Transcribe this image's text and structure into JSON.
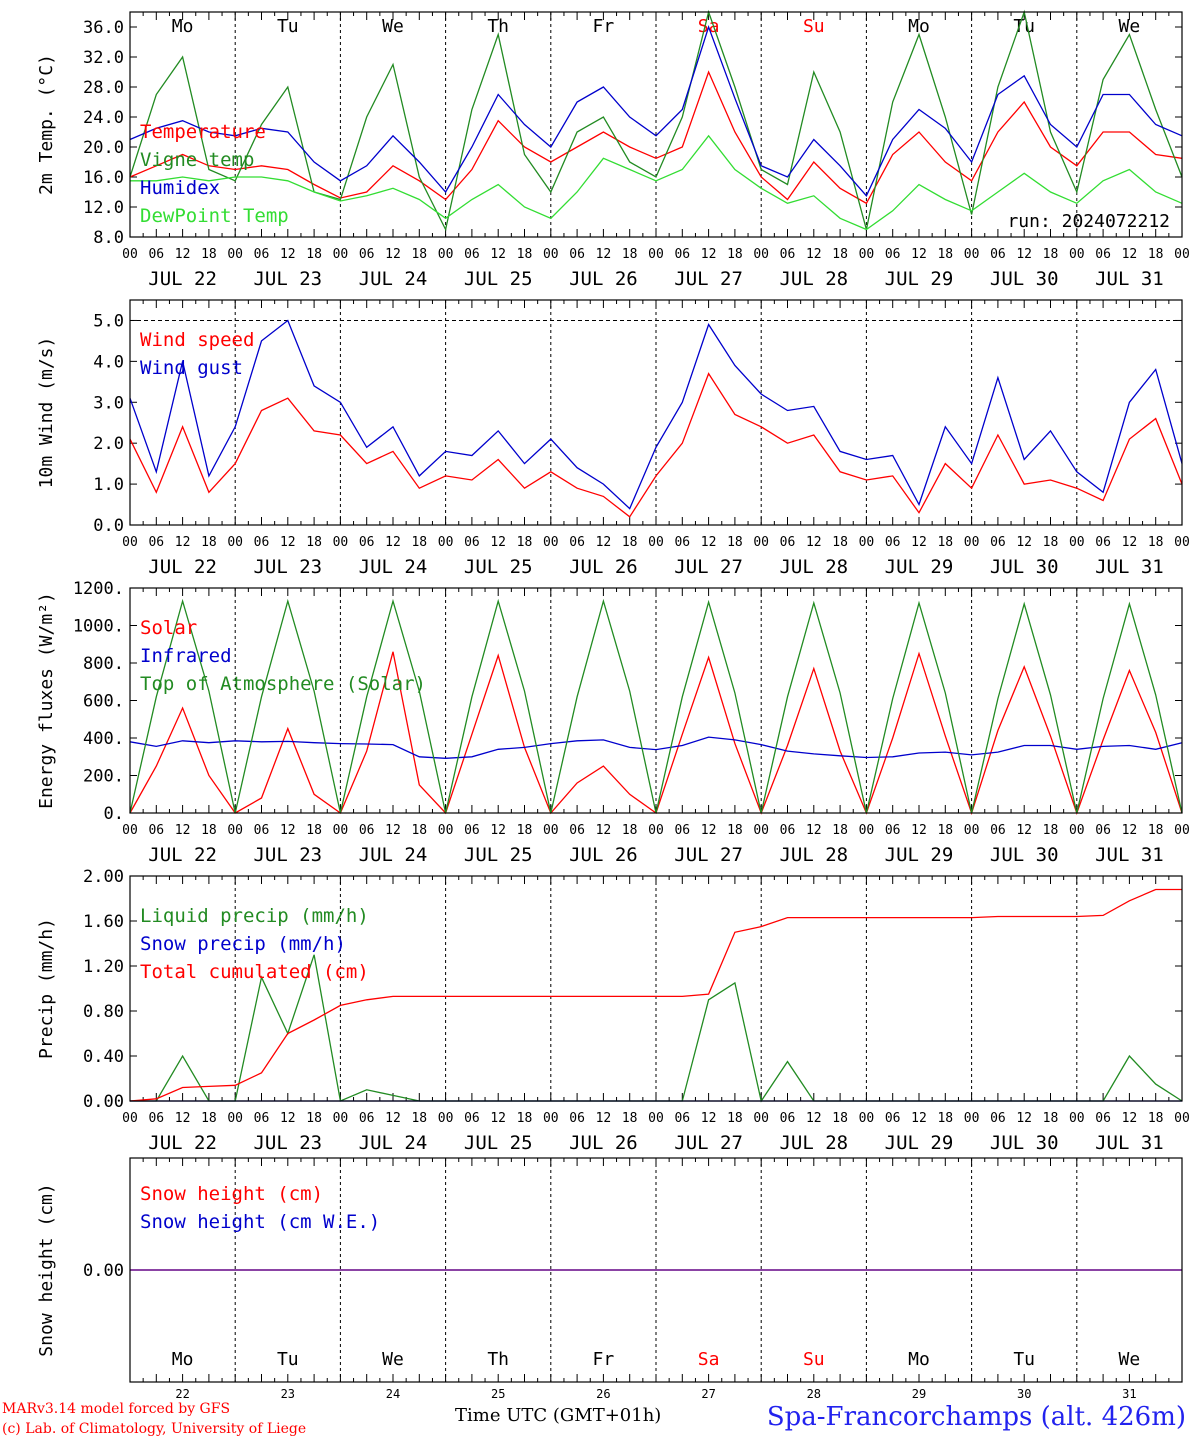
{
  "days": [
    "JUL 22",
    "JUL 23",
    "JUL 24",
    "JUL 25",
    "JUL 26",
    "JUL 27",
    "JUL 28",
    "JUL 29",
    "JUL 30",
    "JUL 31"
  ],
  "weekdays": [
    {
      "label": "Mo",
      "color": "#000000"
    },
    {
      "label": "Tu",
      "color": "#000000"
    },
    {
      "label": "We",
      "color": "#000000"
    },
    {
      "label": "Th",
      "color": "#000000"
    },
    {
      "label": "Fr",
      "color": "#000000"
    },
    {
      "label": "Sa",
      "color": "#ff0000"
    },
    {
      "label": "Su",
      "color": "#ff0000"
    },
    {
      "label": "Mo",
      "color": "#000000"
    },
    {
      "label": "Tu",
      "color": "#000000"
    },
    {
      "label": "We",
      "color": "#000000"
    }
  ],
  "hour_ticks": [
    "00",
    "06",
    "12",
    "18"
  ],
  "end_tick": "00",
  "day_numbers": [
    "22",
    "23",
    "24",
    "25",
    "26",
    "27",
    "28",
    "29",
    "30",
    "31"
  ],
  "footer": {
    "model": "MARv3.14 model forced by GFS",
    "credit": "(c) Lab. of Climatology, University of Liege",
    "xlabel": "Time UTC (GMT+01h)",
    "location": "Spa-Francorchamps (alt. 426m)"
  },
  "chart_data": [
    {
      "type": "line",
      "ylabel": "2m Temp. (°C)",
      "ylim": [
        8,
        38
      ],
      "yticks": [
        8,
        12,
        16,
        20,
        24,
        28,
        32,
        36
      ],
      "ytick_labels": [
        "8.0",
        "12.0",
        "16.0",
        "20.0",
        "24.0",
        "28.0",
        "32.0",
        "36.0"
      ],
      "annotation": "run: 2024072212",
      "legend_position": "left",
      "x_hours": [
        0,
        6,
        12,
        18,
        24,
        30,
        36,
        42,
        48,
        54,
        60,
        66,
        72,
        78,
        84,
        90,
        96,
        102,
        108,
        114,
        120,
        126,
        132,
        138,
        144,
        150,
        156,
        162,
        168,
        174,
        180,
        186,
        192,
        198,
        204,
        210,
        216,
        222,
        228,
        234,
        240
      ],
      "series": [
        {
          "name": "Temperature",
          "color": "#ff0000",
          "values": [
            16,
            17.5,
            19,
            17.5,
            17,
            17.5,
            17,
            15,
            13.2,
            14,
            17.5,
            15.5,
            13,
            17,
            23.5,
            20,
            18,
            20,
            22,
            20,
            18.5,
            20,
            30,
            22,
            16,
            13,
            18,
            14.5,
            12.5,
            19,
            22,
            18,
            15.5,
            22,
            26,
            20,
            17.5,
            22,
            22,
            19,
            18.5
          ]
        },
        {
          "name": "Vigne temp",
          "color": "#228b22",
          "values": [
            16,
            27,
            32,
            17,
            15.5,
            23,
            28,
            14,
            13,
            24,
            31,
            16,
            9,
            25,
            35,
            19,
            14,
            22,
            24,
            18,
            16,
            24,
            38,
            28,
            17,
            15,
            30,
            22,
            9,
            26,
            35,
            24,
            11,
            28,
            38,
            22,
            14,
            29,
            35,
            25,
            16
          ]
        },
        {
          "name": "Humidex",
          "color": "#0000cc",
          "values": [
            21,
            22.5,
            23.5,
            22,
            21.5,
            22.5,
            22,
            18,
            15.5,
            17.5,
            21.5,
            18,
            14,
            20,
            27,
            23,
            20,
            26,
            28,
            24,
            21.5,
            25,
            36,
            26.5,
            17.5,
            16,
            21,
            17.5,
            13.5,
            21,
            25,
            22.5,
            18,
            27,
            29.5,
            23,
            20,
            27,
            27,
            23,
            21.5
          ]
        },
        {
          "name": "DewPoint Temp",
          "color": "#33dd33",
          "values": [
            15.5,
            15.5,
            16,
            15.5,
            16,
            16,
            15.5,
            14,
            12.8,
            13.5,
            14.5,
            13,
            10.5,
            13,
            15,
            12,
            10.5,
            14,
            18.5,
            17,
            15.5,
            17,
            21.5,
            17,
            14.5,
            12.5,
            13.5,
            10.5,
            9,
            11.5,
            15,
            13,
            11.5,
            14,
            16.5,
            14,
            12.5,
            15.5,
            17,
            14,
            12.5
          ]
        }
      ]
    },
    {
      "type": "line",
      "ylabel": "10m Wind (m/s)",
      "ylim": [
        0,
        5.5
      ],
      "yticks": [
        0,
        1,
        2,
        3,
        4,
        5
      ],
      "ytick_labels": [
        "0.0",
        "1.0",
        "2.0",
        "3.0",
        "4.0",
        "5.0"
      ],
      "annotation": "",
      "legend_position": "left",
      "x_hours": [
        0,
        6,
        12,
        18,
        24,
        30,
        36,
        42,
        48,
        54,
        60,
        66,
        72,
        78,
        84,
        90,
        96,
        102,
        108,
        114,
        120,
        126,
        132,
        138,
        144,
        150,
        156,
        162,
        168,
        174,
        180,
        186,
        192,
        198,
        204,
        210,
        216,
        222,
        228,
        234,
        240
      ],
      "series": [
        {
          "name": "Wind speed",
          "color": "#ff0000",
          "values": [
            2.1,
            0.8,
            2.4,
            0.8,
            1.5,
            2.8,
            3.1,
            2.3,
            2.2,
            1.5,
            1.8,
            0.9,
            1.2,
            1.1,
            1.6,
            0.9,
            1.3,
            0.9,
            0.7,
            0.2,
            1.2,
            2.0,
            3.7,
            2.7,
            2.4,
            2.0,
            2.2,
            1.3,
            1.1,
            1.2,
            0.3,
            1.5,
            0.9,
            2.2,
            1.0,
            1.1,
            0.9,
            0.6,
            2.1,
            2.6,
            1.0
          ]
        },
        {
          "name": "Wind gust",
          "color": "#0000cc",
          "values": [
            3.1,
            1.3,
            4.0,
            1.2,
            2.4,
            4.5,
            5.0,
            3.4,
            3.0,
            1.9,
            2.4,
            1.2,
            1.8,
            1.7,
            2.3,
            1.5,
            2.1,
            1.4,
            1.0,
            0.4,
            1.9,
            3.0,
            4.9,
            3.9,
            3.2,
            2.8,
            2.9,
            1.8,
            1.6,
            1.7,
            0.5,
            2.4,
            1.5,
            3.6,
            1.6,
            2.3,
            1.3,
            0.8,
            3.0,
            3.8,
            1.5
          ]
        }
      ]
    },
    {
      "type": "line",
      "ylabel": "Energy fluxes (W/m²)",
      "ylim": [
        0,
        1200
      ],
      "yticks": [
        0,
        200,
        400,
        600,
        800,
        1000,
        1200
      ],
      "ytick_labels": [
        "0.",
        "200.",
        "400.",
        "600.",
        "800.",
        "1000.",
        "1200."
      ],
      "annotation": "",
      "legend_position": "left",
      "x_hours": [
        0,
        6,
        12,
        18,
        24,
        30,
        36,
        42,
        48,
        54,
        60,
        66,
        72,
        78,
        84,
        90,
        96,
        102,
        108,
        114,
        120,
        126,
        132,
        138,
        144,
        150,
        156,
        162,
        168,
        174,
        180,
        186,
        192,
        198,
        204,
        210,
        216,
        222,
        228,
        234,
        240
      ],
      "series": [
        {
          "name": "Solar",
          "color": "#ff0000",
          "values": [
            0,
            250,
            560,
            200,
            0,
            80,
            450,
            100,
            0,
            330,
            860,
            150,
            0,
            420,
            840,
            350,
            0,
            160,
            250,
            100,
            0,
            420,
            830,
            370,
            0,
            360,
            770,
            330,
            0,
            400,
            850,
            410,
            0,
            440,
            780,
            410,
            0,
            390,
            760,
            430,
            0
          ]
        },
        {
          "name": "Infrared",
          "color": "#0000cc",
          "values": [
            380,
            355,
            385,
            375,
            385,
            380,
            382,
            375,
            370,
            368,
            365,
            300,
            292,
            300,
            340,
            350,
            370,
            385,
            390,
            350,
            338,
            360,
            405,
            390,
            365,
            330,
            315,
            305,
            296,
            300,
            320,
            325,
            310,
            325,
            360,
            360,
            340,
            355,
            360,
            340,
            375
          ]
        },
        {
          "name": "Top of Atmosphere (Solar)",
          "color": "#228b22",
          "values": [
            0,
            620,
            1130,
            650,
            0,
            620,
            1130,
            650,
            0,
            620,
            1130,
            650,
            0,
            620,
            1130,
            650,
            0,
            620,
            1130,
            650,
            0,
            620,
            1125,
            640,
            0,
            620,
            1120,
            640,
            0,
            610,
            1120,
            640,
            0,
            610,
            1115,
            630,
            0,
            610,
            1115,
            630,
            0
          ]
        }
      ]
    },
    {
      "type": "line",
      "ylabel": "Precip (mm/h)",
      "ylim": [
        0,
        2
      ],
      "yticks": [
        0,
        0.4,
        0.8,
        1.2,
        1.6,
        2.0
      ],
      "ytick_labels": [
        "0.00",
        "0.40",
        "0.80",
        "1.20",
        "1.60",
        "2.00"
      ],
      "annotation": "",
      "legend_position": "left",
      "x_hours": [
        0,
        6,
        12,
        18,
        24,
        30,
        36,
        42,
        48,
        54,
        60,
        66,
        72,
        78,
        84,
        90,
        96,
        102,
        108,
        114,
        120,
        126,
        132,
        138,
        144,
        150,
        156,
        162,
        168,
        174,
        180,
        186,
        192,
        198,
        204,
        210,
        216,
        222,
        228,
        234,
        240
      ],
      "series": [
        {
          "name": "Liquid precip (mm/h)",
          "color": "#228b22",
          "values": [
            0,
            0,
            0.4,
            0,
            0,
            1.1,
            0.6,
            1.3,
            0,
            0.1,
            0.05,
            0,
            0,
            0,
            0,
            0,
            0,
            0,
            0,
            0,
            0,
            0,
            0.9,
            1.05,
            0,
            0.35,
            0,
            0,
            0,
            0,
            0,
            0,
            0,
            0,
            0,
            0,
            0,
            0,
            0.4,
            0.15,
            0
          ]
        },
        {
          "name": "Snow precip (mm/h)",
          "color": "#0000cc",
          "values": [
            0,
            0,
            0,
            0,
            0,
            0,
            0,
            0,
            0,
            0,
            0,
            0,
            0,
            0,
            0,
            0,
            0,
            0,
            0,
            0,
            0,
            0,
            0,
            0,
            0,
            0,
            0,
            0,
            0,
            0,
            0,
            0,
            0,
            0,
            0,
            0,
            0,
            0,
            0,
            0,
            0
          ]
        },
        {
          "name": "Total cumulated (cm)",
          "color": "#ff0000",
          "values": [
            0,
            0.02,
            0.12,
            0.13,
            0.14,
            0.25,
            0.6,
            0.72,
            0.85,
            0.9,
            0.93,
            0.93,
            0.93,
            0.93,
            0.93,
            0.93,
            0.93,
            0.93,
            0.93,
            0.93,
            0.93,
            0.93,
            0.95,
            1.5,
            1.55,
            1.63,
            1.63,
            1.63,
            1.63,
            1.63,
            1.63,
            1.63,
            1.63,
            1.64,
            1.64,
            1.64,
            1.64,
            1.65,
            1.78,
            1.88,
            1.88
          ]
        }
      ]
    },
    {
      "type": "line",
      "ylabel": "Snow height (cm)",
      "ylim": [
        -1,
        1
      ],
      "yticks": [
        0
      ],
      "ytick_labels": [
        "0.00"
      ],
      "annotation": "",
      "legend_position": "left",
      "x_hours": [
        0,
        240
      ],
      "series": [
        {
          "name": "Snow height (cm)",
          "color": "#ff0000",
          "values": [
            0,
            0
          ]
        },
        {
          "name": "Snow height (cm W.E.)",
          "color": "#0000cc",
          "values": [
            0,
            0
          ]
        }
      ]
    }
  ]
}
